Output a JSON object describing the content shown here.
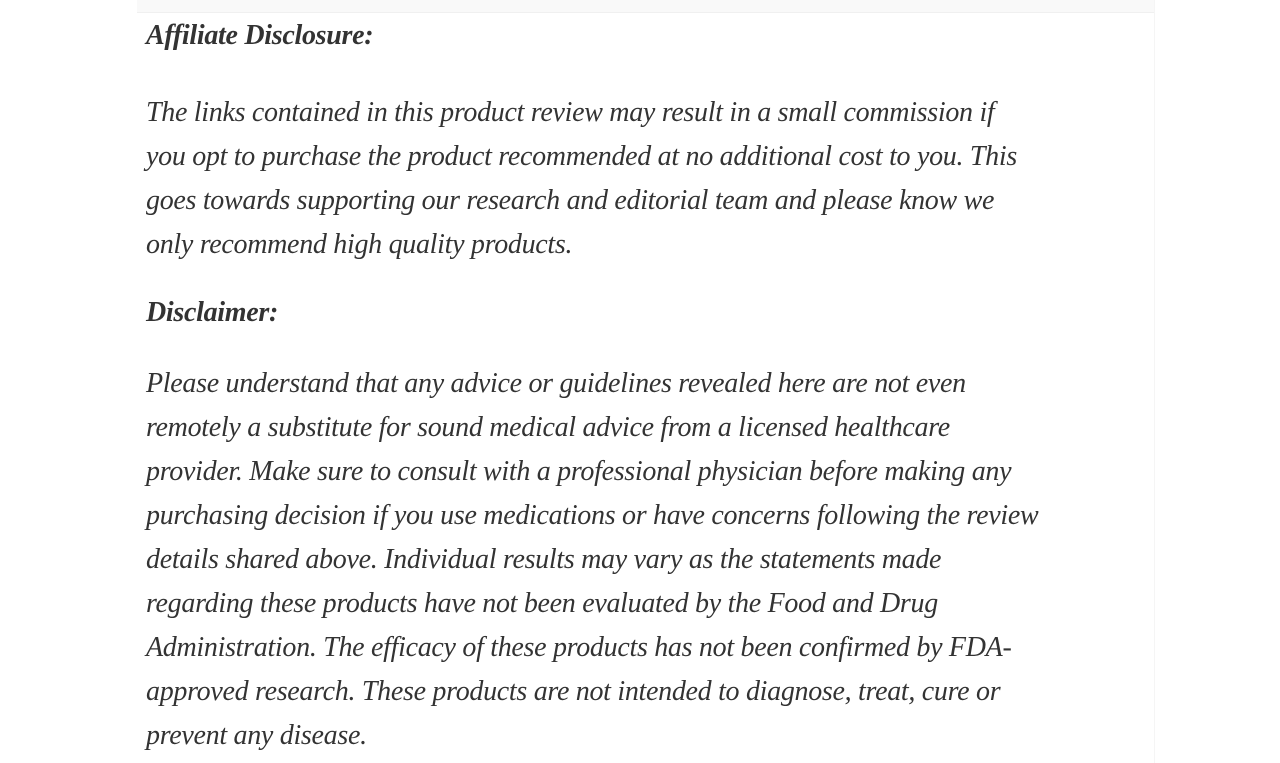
{
  "page": {
    "background_color": "#ffffff",
    "text_color": "#333333",
    "divider_color": "#f0f0f0"
  },
  "article": {
    "sections": [
      {
        "heading": "Affiliate Disclosure:",
        "body": "The links contained in this product review may result in a small commission if\nyou opt to purchase the product recommended at no additional cost to you. This\ngoes towards supporting our research and editorial team and please know we\nonly recommend high quality products."
      },
      {
        "heading": "Disclaimer:",
        "body": "Please understand that any advice or guidelines revealed here are not even\nremotely a substitute for sound medical advice from a licensed healthcare\nprovider. Make sure to consult with a professional physician before making any\npurchasing decision if you use medications or have concerns following the review\ndetails shared above. Individual results may vary as the statements made\nregarding these products have not been evaluated by the Food and Drug\nAdministration. The efficacy of these products has not been confirmed by FDA-\napproved research. These products are not intended to diagnose, treat, cure or\nprevent any disease."
      }
    ]
  }
}
